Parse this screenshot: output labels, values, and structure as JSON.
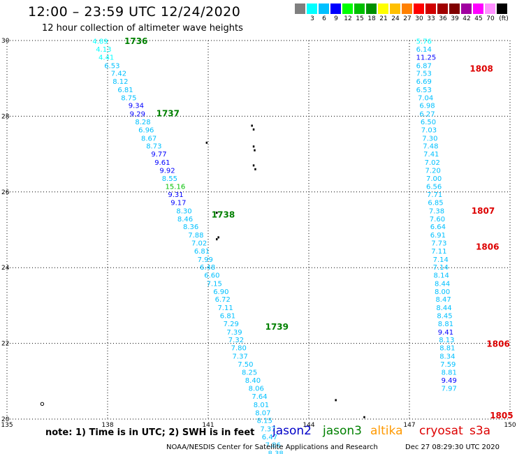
{
  "header": {
    "title": "12:00 – 23:59 UTC 12/24/2020",
    "subtitle": "12 hour collection of altimeter wave heights"
  },
  "legend": {
    "unit": "(ft)",
    "colors": [
      "#7f7f7f",
      "#00ffff",
      "#00c0ff",
      "#0000ff",
      "#00ff00",
      "#00c000",
      "#009000",
      "#ffff00",
      "#ffc000",
      "#ff8000",
      "#ff0000",
      "#d00000",
      "#a00000",
      "#800000",
      "#a000a0",
      "#ff00ff",
      "#ff90ff",
      "#000000"
    ],
    "labels": [
      "3",
      "6",
      "9",
      "12",
      "15",
      "18",
      "21",
      "24",
      "27",
      "30",
      "33",
      "36",
      "39",
      "42",
      "45",
      "70"
    ]
  },
  "footer": {
    "note": "note:  1) Time is in UTC; 2) SWH is in feet",
    "satellites": [
      {
        "name": "jason2",
        "color": "#0000c8"
      },
      {
        "name": "jason3",
        "color": "#008000"
      },
      {
        "name": "altika",
        "color": "#ff9900"
      },
      {
        "name": "cryosat",
        "color": "#dd0000"
      },
      {
        "name": "s3a",
        "color": "#dd0000"
      }
    ],
    "credit": "NOAA/NESDIS Center for Satellite Applications and Research",
    "timestamp": "Dec 27 08:29:30 UTC 2020"
  },
  "chart_data": {
    "type": "scatter",
    "xlim": [
      135,
      150
    ],
    "ylim": [
      20,
      30
    ],
    "x_ticks": [
      135,
      138,
      141,
      144,
      147,
      150
    ],
    "y_ticks": [
      20,
      22,
      24,
      26,
      28,
      30
    ],
    "grid": true,
    "color_scale": {
      "thresholds": [
        3,
        6,
        9,
        12,
        15,
        18,
        21,
        24,
        27,
        30,
        33,
        36,
        39,
        42,
        45,
        70
      ],
      "colors": [
        "#7f7f7f",
        "#00ffff",
        "#00c0ff",
        "#0000ff",
        "#00ff00",
        "#00c000",
        "#009000",
        "#ffff00",
        "#ffc000",
        "#ff8000",
        "#ff0000",
        "#d00000",
        "#a00000",
        "#800000",
        "#a000a0",
        "#ff00ff",
        "#ff90ff",
        "#000000"
      ]
    },
    "tracks": [
      {
        "satellite": "jason3",
        "label_color": "#008000",
        "times": [
          {
            "label": "1736",
            "lat": 29.98,
            "lon": 138.5
          },
          {
            "label": "1737",
            "lat": 28.07,
            "lon": 139.45
          },
          {
            "label": "1738",
            "lat": 25.4,
            "lon": 141.1
          },
          {
            "label": "1739",
            "lat": 22.44,
            "lon": 142.7
          }
        ],
        "points": [
          {
            "lat": 29.98,
            "lon": 137.55,
            "swh": "4.89"
          },
          {
            "lat": 29.77,
            "lon": 137.65,
            "swh": "4.13"
          },
          {
            "lat": 29.56,
            "lon": 137.73,
            "swh": "4.41"
          },
          {
            "lat": 29.34,
            "lon": 137.9,
            "swh": "6.53"
          },
          {
            "lat": 29.13,
            "lon": 138.1,
            "swh": "7.42"
          },
          {
            "lat": 28.92,
            "lon": 138.15,
            "swh": "8.12"
          },
          {
            "lat": 28.7,
            "lon": 138.3,
            "swh": "6.81"
          },
          {
            "lat": 28.49,
            "lon": 138.4,
            "swh": "8.75"
          },
          {
            "lat": 28.28,
            "lon": 138.62,
            "swh": "9.34"
          },
          {
            "lat": 28.06,
            "lon": 138.66,
            "swh": "9.29"
          },
          {
            "lat": 27.85,
            "lon": 138.82,
            "swh": "8.28"
          },
          {
            "lat": 27.64,
            "lon": 138.92,
            "swh": "6.96"
          },
          {
            "lat": 27.42,
            "lon": 139.0,
            "swh": "8.67"
          },
          {
            "lat": 27.21,
            "lon": 139.15,
            "swh": "8.73"
          },
          {
            "lat": 27.0,
            "lon": 139.3,
            "swh": "9.77"
          },
          {
            "lat": 26.78,
            "lon": 139.4,
            "swh": "9.61"
          },
          {
            "lat": 26.57,
            "lon": 139.55,
            "swh": "9.92"
          },
          {
            "lat": 26.36,
            "lon": 139.62,
            "swh": "8.55"
          },
          {
            "lat": 26.14,
            "lon": 139.72,
            "swh": "15.16"
          },
          {
            "lat": 25.93,
            "lon": 139.8,
            "swh": "9.31"
          },
          {
            "lat": 25.72,
            "lon": 139.88,
            "swh": "9.17"
          },
          {
            "lat": 25.5,
            "lon": 140.05,
            "swh": "8.30"
          },
          {
            "lat": 25.29,
            "lon": 140.08,
            "swh": "8.46"
          },
          {
            "lat": 25.08,
            "lon": 140.25,
            "swh": "8.36"
          },
          {
            "lat": 24.86,
            "lon": 140.4,
            "swh": "7.88"
          },
          {
            "lat": 24.65,
            "lon": 140.5,
            "swh": "7.02"
          },
          {
            "lat": 24.44,
            "lon": 140.58,
            "swh": "6.81"
          },
          {
            "lat": 24.22,
            "lon": 140.68,
            "swh": "7.99"
          },
          {
            "lat": 24.01,
            "lon": 140.75,
            "swh": "6.48"
          },
          {
            "lat": 23.8,
            "lon": 140.88,
            "swh": "6.60"
          },
          {
            "lat": 23.58,
            "lon": 140.95,
            "swh": "7.15"
          },
          {
            "lat": 23.37,
            "lon": 141.15,
            "swh": "6.90"
          },
          {
            "lat": 23.16,
            "lon": 141.2,
            "swh": "6.72"
          },
          {
            "lat": 22.94,
            "lon": 141.28,
            "swh": "7.11"
          },
          {
            "lat": 22.73,
            "lon": 141.35,
            "swh": "6.81"
          },
          {
            "lat": 22.52,
            "lon": 141.45,
            "swh": "7.29"
          },
          {
            "lat": 22.3,
            "lon": 141.55,
            "swh": "7.39"
          },
          {
            "lat": 22.09,
            "lon": 141.6,
            "swh": "7.32"
          },
          {
            "lat": 21.88,
            "lon": 141.68,
            "swh": "7.80"
          },
          {
            "lat": 21.66,
            "lon": 141.72,
            "swh": "7.37"
          },
          {
            "lat": 21.45,
            "lon": 141.88,
            "swh": "7.50"
          },
          {
            "lat": 21.24,
            "lon": 142.0,
            "swh": "8.25"
          },
          {
            "lat": 21.02,
            "lon": 142.1,
            "swh": "8.40"
          },
          {
            "lat": 20.81,
            "lon": 142.2,
            "swh": "8.06"
          },
          {
            "lat": 20.6,
            "lon": 142.3,
            "swh": "7.64"
          },
          {
            "lat": 20.38,
            "lon": 142.35,
            "swh": "8.01"
          },
          {
            "lat": 20.17,
            "lon": 142.4,
            "swh": "8.07"
          },
          {
            "lat": 19.96,
            "lon": 142.45,
            "swh": "8.15"
          },
          {
            "lat": 19.74,
            "lon": 142.55,
            "swh": "7.37"
          },
          {
            "lat": 19.53,
            "lon": 142.6,
            "swh": "6.47"
          },
          {
            "lat": 19.32,
            "lon": 142.7,
            "swh": "7.86"
          },
          {
            "lat": 19.1,
            "lon": 142.78,
            "swh": "8.38"
          }
        ]
      },
      {
        "satellite": "cryosat",
        "label_color": "#dd0000",
        "times": [
          {
            "label": "1808",
            "lat": 29.25,
            "lon": 148.8
          },
          {
            "label": "1807",
            "lat": 25.5,
            "lon": 148.85
          },
          {
            "label": "1806",
            "lat": 24.55,
            "lon": 148.98
          },
          {
            "label": "1806",
            "lat": 21.98,
            "lon": 149.3
          },
          {
            "label": "1805",
            "lat": 20.09,
            "lon": 149.4
          }
        ],
        "points": [
          {
            "lat": 29.98,
            "lon": 147.2,
            "swh": "5.76"
          },
          {
            "lat": 29.77,
            "lon": 147.2,
            "swh": "6.14"
          },
          {
            "lat": 29.56,
            "lon": 147.2,
            "swh": "11.25"
          },
          {
            "lat": 29.34,
            "lon": 147.2,
            "swh": "6.87"
          },
          {
            "lat": 29.13,
            "lon": 147.2,
            "swh": "7.53"
          },
          {
            "lat": 28.92,
            "lon": 147.2,
            "swh": "6.69"
          },
          {
            "lat": 28.7,
            "lon": 147.2,
            "swh": "6.53"
          },
          {
            "lat": 28.49,
            "lon": 147.25,
            "swh": "7.04"
          },
          {
            "lat": 28.28,
            "lon": 147.3,
            "swh": "6.98"
          },
          {
            "lat": 28.06,
            "lon": 147.3,
            "swh": "6.27"
          },
          {
            "lat": 27.85,
            "lon": 147.33,
            "swh": "6.50"
          },
          {
            "lat": 27.64,
            "lon": 147.35,
            "swh": "7.03"
          },
          {
            "lat": 27.42,
            "lon": 147.38,
            "swh": "7.30"
          },
          {
            "lat": 27.21,
            "lon": 147.4,
            "swh": "7.48"
          },
          {
            "lat": 27.0,
            "lon": 147.42,
            "swh": "7.41"
          },
          {
            "lat": 26.78,
            "lon": 147.45,
            "swh": "7.02"
          },
          {
            "lat": 26.57,
            "lon": 147.47,
            "swh": "7.20"
          },
          {
            "lat": 26.36,
            "lon": 147.5,
            "swh": "7.00"
          },
          {
            "lat": 26.14,
            "lon": 147.5,
            "swh": "6.56"
          },
          {
            "lat": 25.93,
            "lon": 147.52,
            "swh": "7.71"
          },
          {
            "lat": 25.72,
            "lon": 147.55,
            "swh": "6.85"
          },
          {
            "lat": 25.5,
            "lon": 147.58,
            "swh": "7.38"
          },
          {
            "lat": 25.29,
            "lon": 147.6,
            "swh": "7.60"
          },
          {
            "lat": 25.08,
            "lon": 147.62,
            "swh": "6.64"
          },
          {
            "lat": 24.86,
            "lon": 147.62,
            "swh": "6.91"
          },
          {
            "lat": 24.65,
            "lon": 147.65,
            "swh": "7.73"
          },
          {
            "lat": 24.44,
            "lon": 147.65,
            "swh": "7.11"
          },
          {
            "lat": 24.22,
            "lon": 147.7,
            "swh": "7.14"
          },
          {
            "lat": 24.01,
            "lon": 147.7,
            "swh": "7.14"
          },
          {
            "lat": 23.8,
            "lon": 147.72,
            "swh": "8.14"
          },
          {
            "lat": 23.58,
            "lon": 147.75,
            "swh": "8.44"
          },
          {
            "lat": 23.37,
            "lon": 147.75,
            "swh": "8.00"
          },
          {
            "lat": 23.16,
            "lon": 147.78,
            "swh": "8.47"
          },
          {
            "lat": 22.94,
            "lon": 147.8,
            "swh": "8.44"
          },
          {
            "lat": 22.73,
            "lon": 147.82,
            "swh": "8.45"
          },
          {
            "lat": 22.52,
            "lon": 147.85,
            "swh": "8.81"
          },
          {
            "lat": 22.3,
            "lon": 147.85,
            "swh": "9.41"
          },
          {
            "lat": 22.09,
            "lon": 147.88,
            "swh": "8.13"
          },
          {
            "lat": 21.88,
            "lon": 147.9,
            "swh": "8.81"
          },
          {
            "lat": 21.66,
            "lon": 147.9,
            "swh": "8.34"
          },
          {
            "lat": 21.45,
            "lon": 147.92,
            "swh": "7.59"
          },
          {
            "lat": 21.24,
            "lon": 147.95,
            "swh": "8.81"
          },
          {
            "lat": 21.02,
            "lon": 147.95,
            "swh": "9.49"
          },
          {
            "lat": 20.81,
            "lon": 147.95,
            "swh": "7.97"
          }
        ]
      }
    ],
    "land_marks": [
      {
        "lat": 27.75,
        "lon": 142.3
      },
      {
        "lat": 27.65,
        "lon": 142.35
      },
      {
        "lat": 27.3,
        "lon": 140.95
      },
      {
        "lat": 27.2,
        "lon": 142.35
      },
      {
        "lat": 27.1,
        "lon": 142.38
      },
      {
        "lat": 26.7,
        "lon": 142.35
      },
      {
        "lat": 26.6,
        "lon": 142.4
      },
      {
        "lat": 25.45,
        "lon": 141.25
      },
      {
        "lat": 24.8,
        "lon": 141.3
      },
      {
        "lat": 24.75,
        "lon": 141.25
      },
      {
        "lat": 20.5,
        "lon": 144.8
      },
      {
        "lat": 20.05,
        "lon": 145.65
      }
    ],
    "land_rings": [
      {
        "lat": 20.4,
        "lon": 136.05
      }
    ]
  }
}
